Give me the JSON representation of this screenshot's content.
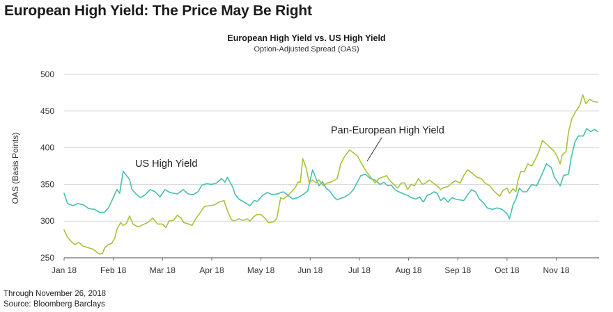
{
  "page": {
    "title": "European High Yield: The Price May Be Right",
    "footnote": "Through November 26, 2018",
    "source": "Source: Bloomberg Barclays"
  },
  "chart_data": {
    "type": "line",
    "title": "European High Yield vs. US High Yield",
    "subtitle": "Option-Adjusted Spread (OAS)",
    "xlabel": "",
    "ylabel": "OAS (Basis Points)",
    "ylim": [
      250,
      500
    ],
    "yticks": [
      250,
      300,
      350,
      400,
      450,
      500
    ],
    "x_range": [
      0,
      10.87
    ],
    "x_ticks": [
      {
        "label": "Jan 18",
        "pos": 0
      },
      {
        "label": "Feb 18",
        "pos": 1
      },
      {
        "label": "Mar 18",
        "pos": 2
      },
      {
        "label": "Apr 18",
        "pos": 3
      },
      {
        "label": "May 18",
        "pos": 4
      },
      {
        "label": "Jun 18",
        "pos": 5
      },
      {
        "label": "Jul 18",
        "pos": 6
      },
      {
        "label": "Aug 18",
        "pos": 7
      },
      {
        "label": "Sep 18",
        "pos": 8
      },
      {
        "label": "Oct 18",
        "pos": 9
      },
      {
        "label": "Nov 18",
        "pos": 10
      }
    ],
    "grid": true,
    "series": [
      {
        "name": "US High Yield",
        "color": "#45bfae",
        "points": [
          [
            0,
            338
          ],
          [
            0.07,
            324
          ],
          [
            0.18,
            321
          ],
          [
            0.28,
            324
          ],
          [
            0.4,
            322
          ],
          [
            0.5,
            317
          ],
          [
            0.62,
            316
          ],
          [
            0.72,
            312
          ],
          [
            0.82,
            312
          ],
          [
            0.9,
            318
          ],
          [
            1.0,
            332
          ],
          [
            1.07,
            343
          ],
          [
            1.13,
            338
          ],
          [
            1.2,
            368
          ],
          [
            1.27,
            362
          ],
          [
            1.33,
            357
          ],
          [
            1.38,
            343
          ],
          [
            1.45,
            338
          ],
          [
            1.55,
            332
          ],
          [
            1.65,
            336
          ],
          [
            1.75,
            343
          ],
          [
            1.85,
            340
          ],
          [
            1.95,
            333
          ],
          [
            2.05,
            343
          ],
          [
            2.15,
            339
          ],
          [
            2.3,
            337
          ],
          [
            2.42,
            343
          ],
          [
            2.52,
            337
          ],
          [
            2.62,
            336
          ],
          [
            2.72,
            340
          ],
          [
            2.8,
            349
          ],
          [
            2.9,
            351
          ],
          [
            3.0,
            350
          ],
          [
            3.1,
            352
          ],
          [
            3.2,
            358
          ],
          [
            3.27,
            353
          ],
          [
            3.32,
            360
          ],
          [
            3.38,
            352
          ],
          [
            3.43,
            346
          ],
          [
            3.47,
            337
          ],
          [
            3.55,
            330
          ],
          [
            3.68,
            325
          ],
          [
            3.78,
            321
          ],
          [
            3.86,
            328
          ],
          [
            3.93,
            327
          ],
          [
            4.03,
            335
          ],
          [
            4.13,
            339
          ],
          [
            4.23,
            336
          ],
          [
            4.33,
            337
          ],
          [
            4.45,
            340
          ],
          [
            4.55,
            335
          ],
          [
            4.65,
            330
          ],
          [
            4.75,
            332
          ],
          [
            4.85,
            336
          ],
          [
            4.95,
            341
          ],
          [
            5.0,
            356
          ],
          [
            5.05,
            370
          ],
          [
            5.12,
            358
          ],
          [
            5.18,
            348
          ],
          [
            5.25,
            354
          ],
          [
            5.32,
            345
          ],
          [
            5.4,
            341
          ],
          [
            5.48,
            333
          ],
          [
            5.55,
            329
          ],
          [
            5.62,
            331
          ],
          [
            5.7,
            333
          ],
          [
            5.8,
            337
          ],
          [
            5.88,
            343
          ],
          [
            5.95,
            352
          ],
          [
            6.03,
            362
          ],
          [
            6.12,
            364
          ],
          [
            6.22,
            358
          ],
          [
            6.32,
            356
          ],
          [
            6.42,
            350
          ],
          [
            6.5,
            353
          ],
          [
            6.58,
            348
          ],
          [
            6.65,
            349
          ],
          [
            6.72,
            343
          ],
          [
            6.8,
            340
          ],
          [
            6.9,
            337
          ],
          [
            6.98,
            335
          ],
          [
            7.05,
            332
          ],
          [
            7.15,
            330
          ],
          [
            7.22,
            333
          ],
          [
            7.3,
            326
          ],
          [
            7.38,
            335
          ],
          [
            7.45,
            337
          ],
          [
            7.52,
            340
          ],
          [
            7.58,
            338
          ],
          [
            7.65,
            328
          ],
          [
            7.72,
            332
          ],
          [
            7.8,
            326
          ],
          [
            7.88,
            332
          ],
          [
            7.95,
            330
          ],
          [
            8.03,
            329
          ],
          [
            8.12,
            328
          ],
          [
            8.2,
            336
          ],
          [
            8.28,
            343
          ],
          [
            8.36,
            340
          ],
          [
            8.44,
            330
          ],
          [
            8.52,
            325
          ],
          [
            8.6,
            318
          ],
          [
            8.7,
            316
          ],
          [
            8.8,
            318
          ],
          [
            8.9,
            316
          ],
          [
            9.0,
            310
          ],
          [
            9.05,
            303
          ],
          [
            9.12,
            322
          ],
          [
            9.18,
            330
          ],
          [
            9.25,
            345
          ],
          [
            9.32,
            340
          ],
          [
            9.4,
            340
          ],
          [
            9.5,
            350
          ],
          [
            9.6,
            348
          ],
          [
            9.7,
            362
          ],
          [
            9.8,
            378
          ],
          [
            9.9,
            373
          ],
          [
            9.96,
            360
          ],
          [
            10.03,
            353
          ],
          [
            10.08,
            348
          ],
          [
            10.15,
            362
          ],
          [
            10.25,
            364
          ],
          [
            10.3,
            385
          ],
          [
            10.38,
            408
          ],
          [
            10.45,
            416
          ],
          [
            10.55,
            416
          ],
          [
            10.62,
            426
          ],
          [
            10.7,
            422
          ],
          [
            10.78,
            425
          ],
          [
            10.84,
            422
          ]
        ]
      },
      {
        "name": "Pan-European High Yield",
        "color": "#a8c23a",
        "points": [
          [
            0,
            288
          ],
          [
            0.07,
            278
          ],
          [
            0.15,
            272
          ],
          [
            0.22,
            268
          ],
          [
            0.3,
            271
          ],
          [
            0.38,
            266
          ],
          [
            0.48,
            264
          ],
          [
            0.58,
            262
          ],
          [
            0.66,
            258
          ],
          [
            0.72,
            255
          ],
          [
            0.78,
            256
          ],
          [
            0.83,
            264
          ],
          [
            0.9,
            268
          ],
          [
            0.97,
            270
          ],
          [
            1.03,
            277
          ],
          [
            1.08,
            290
          ],
          [
            1.15,
            298
          ],
          [
            1.2,
            294
          ],
          [
            1.27,
            297
          ],
          [
            1.33,
            307
          ],
          [
            1.4,
            296
          ],
          [
            1.5,
            292
          ],
          [
            1.6,
            295
          ],
          [
            1.7,
            298
          ],
          [
            1.8,
            304
          ],
          [
            1.9,
            296
          ],
          [
            2.0,
            296
          ],
          [
            2.07,
            291
          ],
          [
            2.13,
            300
          ],
          [
            2.22,
            301
          ],
          [
            2.3,
            308
          ],
          [
            2.38,
            304
          ],
          [
            2.43,
            298
          ],
          [
            2.53,
            296
          ],
          [
            2.6,
            294
          ],
          [
            2.68,
            304
          ],
          [
            2.75,
            310
          ],
          [
            2.85,
            320
          ],
          [
            2.95,
            321
          ],
          [
            3.05,
            322
          ],
          [
            3.15,
            326
          ],
          [
            3.25,
            328
          ],
          [
            3.33,
            312
          ],
          [
            3.4,
            302
          ],
          [
            3.45,
            300
          ],
          [
            3.55,
            303
          ],
          [
            3.65,
            301
          ],
          [
            3.72,
            303
          ],
          [
            3.78,
            300
          ],
          [
            3.85,
            306
          ],
          [
            3.92,
            309
          ],
          [
            4.0,
            309
          ],
          [
            4.08,
            304
          ],
          [
            4.15,
            298
          ],
          [
            4.25,
            299
          ],
          [
            4.32,
            303
          ],
          [
            4.4,
            332
          ],
          [
            4.45,
            330
          ],
          [
            4.55,
            335
          ],
          [
            4.62,
            340
          ],
          [
            4.7,
            346
          ],
          [
            4.75,
            353
          ],
          [
            4.8,
            353
          ],
          [
            4.85,
            385
          ],
          [
            4.92,
            372
          ],
          [
            4.98,
            352
          ],
          [
            5.05,
            356
          ],
          [
            5.12,
            352
          ],
          [
            5.18,
            356
          ],
          [
            5.27,
            348
          ],
          [
            5.35,
            352
          ],
          [
            5.45,
            354
          ],
          [
            5.55,
            358
          ],
          [
            5.62,
            378
          ],
          [
            5.7,
            388
          ],
          [
            5.8,
            397
          ],
          [
            5.9,
            392
          ],
          [
            5.97,
            388
          ],
          [
            6.03,
            380
          ],
          [
            6.1,
            372
          ],
          [
            6.18,
            364
          ],
          [
            6.25,
            358
          ],
          [
            6.32,
            352
          ],
          [
            6.4,
            358
          ],
          [
            6.48,
            360
          ],
          [
            6.55,
            362
          ],
          [
            6.62,
            355
          ],
          [
            6.7,
            350
          ],
          [
            6.78,
            345
          ],
          [
            6.85,
            352
          ],
          [
            6.92,
            352
          ],
          [
            6.98,
            343
          ],
          [
            7.05,
            350
          ],
          [
            7.12,
            348
          ],
          [
            7.2,
            358
          ],
          [
            7.28,
            350
          ],
          [
            7.35,
            352
          ],
          [
            7.42,
            356
          ],
          [
            7.5,
            352
          ],
          [
            7.58,
            348
          ],
          [
            7.65,
            343
          ],
          [
            7.72,
            346
          ],
          [
            7.8,
            347
          ],
          [
            7.88,
            352
          ],
          [
            7.95,
            355
          ],
          [
            8.05,
            352
          ],
          [
            8.12,
            362
          ],
          [
            8.2,
            370
          ],
          [
            8.3,
            365
          ],
          [
            8.38,
            360
          ],
          [
            8.48,
            358
          ],
          [
            8.55,
            352
          ],
          [
            8.65,
            348
          ],
          [
            8.75,
            340
          ],
          [
            8.85,
            334
          ],
          [
            8.92,
            342
          ],
          [
            9.0,
            345
          ],
          [
            9.05,
            338
          ],
          [
            9.12,
            344
          ],
          [
            9.18,
            340
          ],
          [
            9.22,
            355
          ],
          [
            9.28,
            368
          ],
          [
            9.35,
            367
          ],
          [
            9.42,
            378
          ],
          [
            9.5,
            375
          ],
          [
            9.58,
            385
          ],
          [
            9.65,
            395
          ],
          [
            9.72,
            410
          ],
          [
            9.8,
            405
          ],
          [
            9.88,
            400
          ],
          [
            9.95,
            396
          ],
          [
            10.02,
            388
          ],
          [
            10.08,
            378
          ],
          [
            10.12,
            390
          ],
          [
            10.2,
            395
          ],
          [
            10.25,
            422
          ],
          [
            10.32,
            440
          ],
          [
            10.4,
            450
          ],
          [
            10.48,
            458
          ],
          [
            10.54,
            472
          ],
          [
            10.6,
            460
          ],
          [
            10.68,
            466
          ],
          [
            10.75,
            463
          ],
          [
            10.84,
            462
          ]
        ]
      }
    ],
    "annotations": [
      {
        "text": "US High Yield",
        "series": 0
      },
      {
        "text": "Pan-European High Yield",
        "series": 1
      }
    ]
  }
}
